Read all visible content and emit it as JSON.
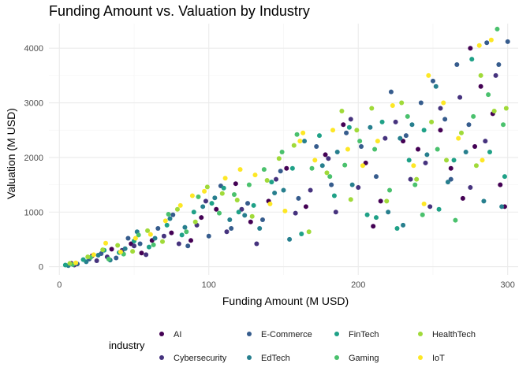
{
  "chart_data": {
    "type": "scatter",
    "title": "Funding Amount vs. Valuation by Industry",
    "xlabel": "Funding Amount (M USD)",
    "ylabel": "Valuation (M USD)",
    "xlim": [
      -7,
      307
    ],
    "ylim": [
      -150,
      4450
    ],
    "x_ticks": [
      0,
      100,
      200,
      300
    ],
    "y_ticks": [
      0,
      1000,
      2000,
      3000,
      4000
    ],
    "grid": true,
    "legend_position": "bottom",
    "legend_title": "industry",
    "series": [
      {
        "name": "AI",
        "color": "#440154",
        "points": [
          [
            8,
            60
          ],
          [
            22,
            200
          ],
          [
            35,
            320
          ],
          [
            48,
            420
          ],
          [
            55,
            250
          ],
          [
            62,
            480
          ],
          [
            75,
            620
          ],
          [
            88,
            480
          ],
          [
            95,
            900
          ],
          [
            105,
            1050
          ],
          [
            118,
            1520
          ],
          [
            128,
            820
          ],
          [
            140,
            1200
          ],
          [
            152,
            1800
          ],
          [
            165,
            1100
          ],
          [
            178,
            2050
          ],
          [
            190,
            2600
          ],
          [
            205,
            1900
          ],
          [
            215,
            1200
          ],
          [
            230,
            2300
          ],
          [
            240,
            2150
          ],
          [
            255,
            2500
          ],
          [
            262,
            1800
          ],
          [
            270,
            1250
          ],
          [
            278,
            2200
          ],
          [
            282,
            3300
          ],
          [
            290,
            2800
          ],
          [
            295,
            1500
          ],
          [
            298,
            1100
          ],
          [
            210,
            740
          ],
          [
            275,
            4000
          ]
        ]
      },
      {
        "name": "Cybersecurity",
        "color": "#46337e",
        "points": [
          [
            10,
            30
          ],
          [
            25,
            110
          ],
          [
            32,
            180
          ],
          [
            42,
            300
          ],
          [
            50,
            380
          ],
          [
            58,
            220
          ],
          [
            70,
            560
          ],
          [
            80,
            420
          ],
          [
            92,
            760
          ],
          [
            98,
            1200
          ],
          [
            112,
            640
          ],
          [
            122,
            1050
          ],
          [
            132,
            420
          ],
          [
            145,
            1600
          ],
          [
            158,
            980
          ],
          [
            168,
            1400
          ],
          [
            180,
            1980
          ],
          [
            195,
            2700
          ],
          [
            200,
            1450
          ],
          [
            218,
            2350
          ],
          [
            225,
            2650
          ],
          [
            235,
            1600
          ],
          [
            245,
            1900
          ],
          [
            255,
            2900
          ],
          [
            268,
            3100
          ],
          [
            275,
            1450
          ],
          [
            285,
            2300
          ],
          [
            292,
            3500
          ],
          [
            185,
            1000
          ],
          [
            248,
            1100
          ]
        ]
      },
      {
        "name": "E-Commerce",
        "color": "#365c8d",
        "points": [
          [
            12,
            50
          ],
          [
            20,
            140
          ],
          [
            28,
            240
          ],
          [
            38,
            160
          ],
          [
            46,
            520
          ],
          [
            54,
            420
          ],
          [
            66,
            700
          ],
          [
            76,
            950
          ],
          [
            86,
            380
          ],
          [
            100,
            560
          ],
          [
            108,
            1480
          ],
          [
            115,
            700
          ],
          [
            126,
            1160
          ],
          [
            136,
            860
          ],
          [
            148,
            1750
          ],
          [
            160,
            1250
          ],
          [
            172,
            2200
          ],
          [
            182,
            1500
          ],
          [
            192,
            2450
          ],
          [
            202,
            2200
          ],
          [
            212,
            1650
          ],
          [
            222,
            3200
          ],
          [
            232,
            2400
          ],
          [
            242,
            3000
          ],
          [
            250,
            3400
          ],
          [
            258,
            2700
          ],
          [
            266,
            3700
          ],
          [
            274,
            2600
          ],
          [
            286,
            4100
          ],
          [
            294,
            3700
          ],
          [
            300,
            4120
          ],
          [
            262,
            1600
          ]
        ]
      },
      {
        "name": "EdTech",
        "color": "#277f8e",
        "points": [
          [
            6,
            20
          ],
          [
            18,
            90
          ],
          [
            26,
            210
          ],
          [
            34,
            120
          ],
          [
            44,
            330
          ],
          [
            52,
            640
          ],
          [
            64,
            520
          ],
          [
            74,
            880
          ],
          [
            84,
            720
          ],
          [
            96,
            1100
          ],
          [
            104,
            1260
          ],
          [
            114,
            860
          ],
          [
            124,
            940
          ],
          [
            134,
            700
          ],
          [
            144,
            1350
          ],
          [
            154,
            500
          ],
          [
            164,
            2300
          ],
          [
            176,
            1850
          ],
          [
            186,
            2100
          ],
          [
            196,
            1500
          ],
          [
            208,
            2550
          ],
          [
            220,
            1000
          ],
          [
            228,
            2350
          ],
          [
            236,
            2600
          ],
          [
            246,
            2050
          ],
          [
            252,
            3300
          ],
          [
            260,
            1550
          ],
          [
            272,
            2100
          ],
          [
            284,
            1200
          ],
          [
            296,
            1100
          ],
          [
            150,
            1400
          ],
          [
            230,
            760
          ]
        ]
      },
      {
        "name": "FinTech",
        "color": "#1fa187",
        "points": [
          [
            4,
            30
          ],
          [
            16,
            130
          ],
          [
            30,
            300
          ],
          [
            40,
            260
          ],
          [
            50,
            470
          ],
          [
            60,
            360
          ],
          [
            72,
            760
          ],
          [
            82,
            580
          ],
          [
            90,
            1000
          ],
          [
            102,
            1160
          ],
          [
            110,
            1440
          ],
          [
            120,
            1000
          ],
          [
            130,
            1120
          ],
          [
            142,
            1550
          ],
          [
            156,
            1800
          ],
          [
            162,
            600
          ],
          [
            174,
            2400
          ],
          [
            184,
            1300
          ],
          [
            194,
            2550
          ],
          [
            206,
            950
          ],
          [
            216,
            2650
          ],
          [
            226,
            700
          ],
          [
            234,
            1950
          ],
          [
            244,
            2500
          ],
          [
            254,
            1050
          ],
          [
            264,
            1950
          ],
          [
            276,
            3800
          ],
          [
            288,
            2100
          ],
          [
            298,
            1650
          ],
          [
            212,
            900
          ]
        ]
      },
      {
        "name": "Gaming",
        "color": "#4ac16d",
        "points": [
          [
            9,
            40
          ],
          [
            21,
            170
          ],
          [
            33,
            140
          ],
          [
            43,
            230
          ],
          [
            53,
            580
          ],
          [
            63,
            400
          ],
          [
            73,
            960
          ],
          [
            85,
            640
          ],
          [
            93,
            1280
          ],
          [
            107,
            980
          ],
          [
            117,
            1320
          ],
          [
            127,
            1500
          ],
          [
            137,
            1780
          ],
          [
            149,
            2100
          ],
          [
            159,
            2420
          ],
          [
            169,
            1800
          ],
          [
            181,
            1650
          ],
          [
            191,
            1860
          ],
          [
            201,
            2300
          ],
          [
            211,
            2150
          ],
          [
            221,
            1400
          ],
          [
            233,
            2750
          ],
          [
            243,
            950
          ],
          [
            253,
            2150
          ],
          [
            265,
            850
          ],
          [
            277,
            2750
          ],
          [
            287,
            3150
          ],
          [
            293,
            4350
          ],
          [
            297,
            2600
          ],
          [
            238,
            1500
          ]
        ]
      },
      {
        "name": "HealthTech",
        "color": "#a0da39",
        "points": [
          [
            7,
            60
          ],
          [
            19,
            180
          ],
          [
            29,
            310
          ],
          [
            39,
            390
          ],
          [
            49,
            280
          ],
          [
            59,
            660
          ],
          [
            69,
            460
          ],
          [
            79,
            1050
          ],
          [
            91,
            820
          ],
          [
            99,
            1460
          ],
          [
            109,
            1340
          ],
          [
            119,
            1220
          ],
          [
            129,
            920
          ],
          [
            139,
            1580
          ],
          [
            147,
            1980
          ],
          [
            157,
            2220
          ],
          [
            167,
            640
          ],
          [
            179,
            1720
          ],
          [
            189,
            2850
          ],
          [
            199,
            2500
          ],
          [
            209,
            2900
          ],
          [
            219,
            1200
          ],
          [
            229,
            3000
          ],
          [
            239,
            1600
          ],
          [
            249,
            2650
          ],
          [
            259,
            1950
          ],
          [
            269,
            2450
          ],
          [
            279,
            1850
          ],
          [
            291,
            2850
          ],
          [
            299,
            2900
          ],
          [
            282,
            3500
          ],
          [
            195,
            1230
          ]
        ]
      },
      {
        "name": "IoT",
        "color": "#fde725",
        "points": [
          [
            11,
            70
          ],
          [
            23,
            220
          ],
          [
            31,
            430
          ],
          [
            41,
            270
          ],
          [
            51,
            520
          ],
          [
            61,
            590
          ],
          [
            71,
            840
          ],
          [
            81,
            1120
          ],
          [
            89,
            1300
          ],
          [
            97,
            1380
          ],
          [
            111,
            1620
          ],
          [
            121,
            1780
          ],
          [
            131,
            1680
          ],
          [
            141,
            1150
          ],
          [
            151,
            1020
          ],
          [
            161,
            2300
          ],
          [
            171,
            1950
          ],
          [
            183,
            2500
          ],
          [
            193,
            2150
          ],
          [
            203,
            1850
          ],
          [
            213,
            2300
          ],
          [
            223,
            2950
          ],
          [
            237,
            1850
          ],
          [
            247,
            3500
          ],
          [
            257,
            3000
          ],
          [
            267,
            2350
          ],
          [
            281,
            4050
          ],
          [
            289,
            4150
          ],
          [
            283,
            1950
          ],
          [
            244,
            1150
          ],
          [
            163,
            2450
          ]
        ]
      }
    ]
  }
}
